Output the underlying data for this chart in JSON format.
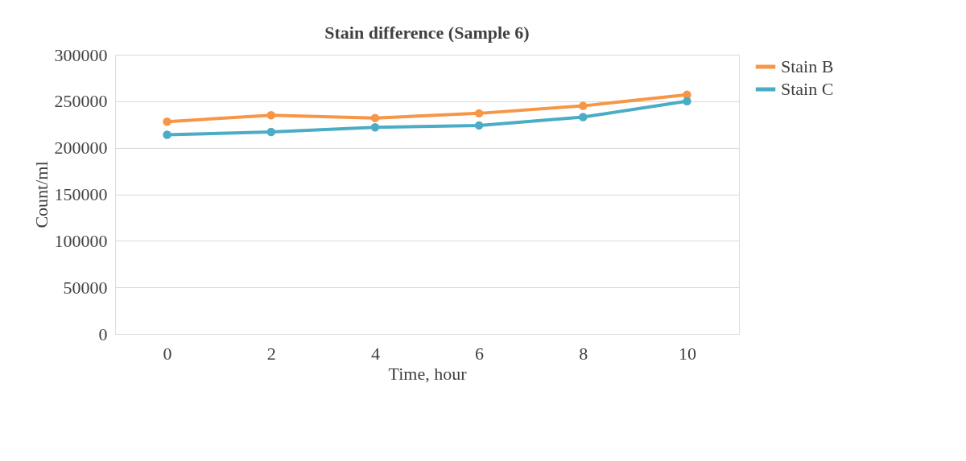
{
  "chart_data": {
    "type": "line",
    "title": "Stain difference (Sample 6)",
    "xlabel": "Time, hour",
    "ylabel": "Count/ml",
    "categories": [
      "0",
      "2",
      "4",
      "6",
      "8",
      "10"
    ],
    "series": [
      {
        "name": "Stain B",
        "color": "#f79646",
        "values": [
          228000,
          235000,
          232000,
          237000,
          245000,
          257000
        ]
      },
      {
        "name": "Stain C",
        "color": "#4bacc6",
        "values": [
          214000,
          217000,
          222000,
          224000,
          233000,
          250000
        ]
      }
    ],
    "ylim": [
      0,
      300000
    ],
    "yticks": [
      0,
      50000,
      100000,
      150000,
      200000,
      250000,
      300000
    ],
    "grid": "y",
    "legend": "right",
    "marker": "circle",
    "line_style": "solid"
  }
}
